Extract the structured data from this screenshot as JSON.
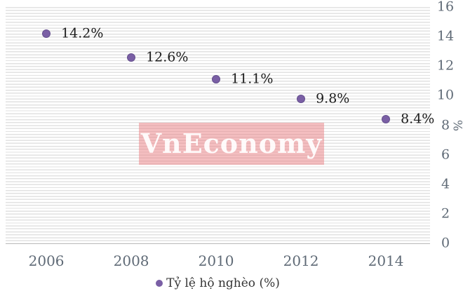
{
  "chart_data": {
    "type": "scatter",
    "categories": [
      "2006",
      "2008",
      "2010",
      "2012",
      "2014"
    ],
    "series": [
      {
        "name": "Tỷ lệ hộ nghèo (%)",
        "values": [
          14.2,
          12.6,
          11.1,
          9.8,
          8.4
        ]
      }
    ],
    "point_labels": [
      "14.2%",
      "12.6%",
      "11.1%",
      "9.8%",
      "8.4%"
    ],
    "title": "",
    "xlabel": "",
    "ylabel": "%",
    "ylim": [
      0,
      16
    ],
    "y_ticks": [
      0,
      2,
      4,
      6,
      8,
      10,
      12,
      14,
      16
    ],
    "grid": "horizontal-minor-stripes",
    "legend_label": "Tỷ lệ hộ nghèo (%)",
    "legend_position": "bottom-center",
    "y_axis_side": "right"
  },
  "watermark": {
    "text": "VnEconomy"
  },
  "colors": {
    "marker": "#7A5FA5",
    "marker_border": "#65508E",
    "data_label": "#1C1C1C",
    "axis_label": "#5F6A76",
    "stripe": "#E2E2E2",
    "watermark_bg": "#E97E82",
    "watermark_text": "#FFFFFF"
  }
}
